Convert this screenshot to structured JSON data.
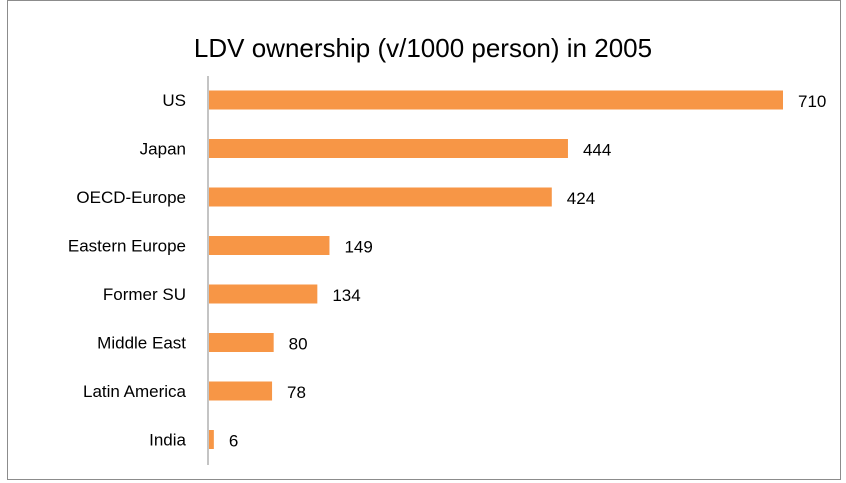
{
  "chart_data": {
    "type": "bar",
    "orientation": "horizontal",
    "title": "LDV ownership (v/1000 person) in 2005",
    "categories": [
      "US",
      "Japan",
      "OECD-Europe",
      "Eastern Europe",
      "Former SU",
      "Middle East",
      "Latin America",
      "India"
    ],
    "values": [
      710,
      444,
      424,
      149,
      134,
      80,
      78,
      6
    ],
    "xlabel": "",
    "ylabel": "",
    "grid": false,
    "legend": "none",
    "bar_color": "#f79646"
  }
}
